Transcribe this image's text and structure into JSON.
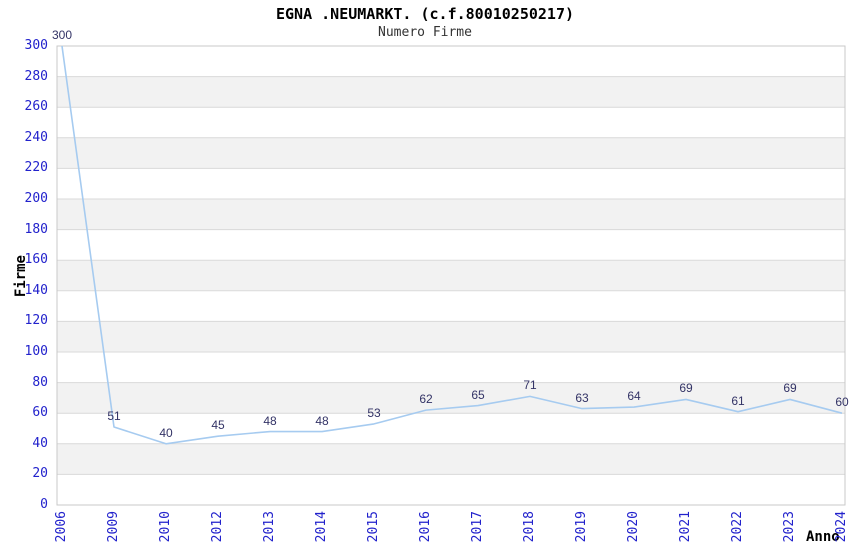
{
  "chart_data": {
    "type": "line",
    "title": "EGNA .NEUMARKT. (c.f.80010250217)",
    "subtitle": "Numero Firme",
    "xlabel": "Anno",
    "ylabel": "Firme",
    "categories": [
      "2006",
      "2009",
      "2010",
      "2012",
      "2013",
      "2014",
      "2015",
      "2016",
      "2017",
      "2018",
      "2019",
      "2020",
      "2021",
      "2022",
      "2023",
      "2024"
    ],
    "values": [
      300,
      51,
      40,
      45,
      48,
      48,
      53,
      62,
      65,
      71,
      63,
      64,
      69,
      61,
      69,
      60
    ],
    "ylim": [
      0,
      300
    ],
    "ytick_step": 20,
    "grid": "horizontal",
    "legend": "none",
    "band_fill": true,
    "colors": {
      "line": "#a6cbf0",
      "data_label": "#333366",
      "tick_label": "#2222cc",
      "band": "#f2f2f2",
      "gridline": "#d9d9d9",
      "border": "#c9c9c9",
      "title": "#000000",
      "subtitle": "#333333"
    }
  }
}
